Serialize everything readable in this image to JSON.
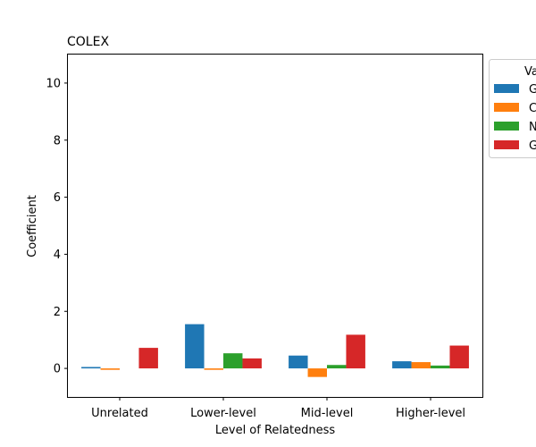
{
  "chart_data": {
    "type": "bar",
    "title": "COLEX",
    "xlabel": "Level of Relatedness",
    "ylabel": "Coefficient",
    "categories": [
      "Unrelated",
      "Lower-level",
      "Mid-level",
      "Higher-level"
    ],
    "ylim": [
      -1.0,
      11.0
    ],
    "yticks": [
      0,
      2,
      4,
      6,
      8,
      10
    ],
    "grid": false,
    "legend": {
      "title": "Va",
      "placement": "upper-right-outside",
      "clipped": true
    },
    "series": [
      {
        "name": "G",
        "color": "#1f77b4",
        "values": [
          0.05,
          1.55,
          0.45,
          0.25
        ]
      },
      {
        "name": "C",
        "color": "#ff7f0e",
        "values": [
          -0.05,
          -0.05,
          -0.3,
          0.22
        ]
      },
      {
        "name": "N",
        "color": "#2ca02c",
        "values": [
          0.0,
          0.53,
          0.12,
          0.1
        ]
      },
      {
        "name": "G",
        "color": "#d62728",
        "values": [
          0.72,
          0.35,
          1.18,
          0.8
        ]
      }
    ]
  }
}
